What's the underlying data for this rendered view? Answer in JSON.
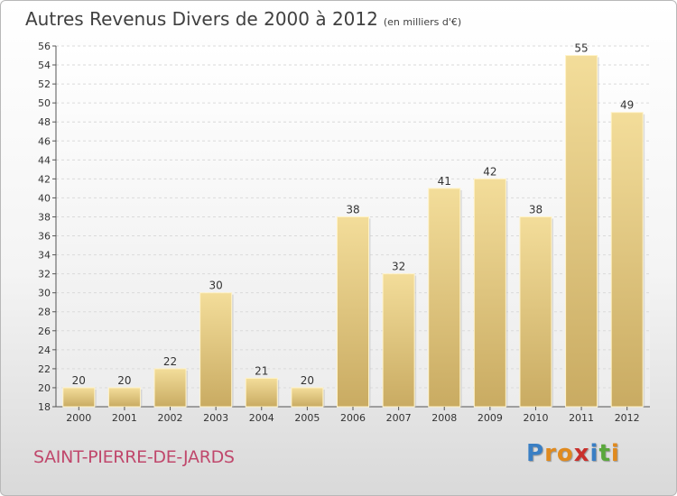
{
  "title": "Autres Revenus Divers de 2000 à 2012",
  "subtitle": "(en milliers d'€)",
  "commune": "SAINT-PIERRE-DE-JARDS",
  "logo": {
    "letters": [
      "P",
      "r",
      "o",
      "x",
      "i",
      "t",
      "i"
    ],
    "colors": [
      "#3a7fc4",
      "#e08a1e",
      "#e08a1e",
      "#c9302c",
      "#3a7fc4",
      "#5aa83c",
      "#e08a1e"
    ]
  },
  "chart_data": {
    "type": "bar",
    "categories": [
      "2000",
      "2001",
      "2002",
      "2003",
      "2004",
      "2005",
      "2006",
      "2007",
      "2008",
      "2009",
      "2010",
      "2011",
      "2012"
    ],
    "values": [
      20,
      20,
      22,
      30,
      21,
      20,
      38,
      32,
      41,
      42,
      38,
      55,
      49
    ],
    "ylim": [
      18,
      56
    ],
    "yticks": [
      18,
      20,
      22,
      24,
      26,
      28,
      30,
      32,
      34,
      36,
      38,
      40,
      42,
      44,
      46,
      48,
      50,
      52,
      54,
      56
    ],
    "grid": true,
    "bar_color": "#e8cf86"
  }
}
